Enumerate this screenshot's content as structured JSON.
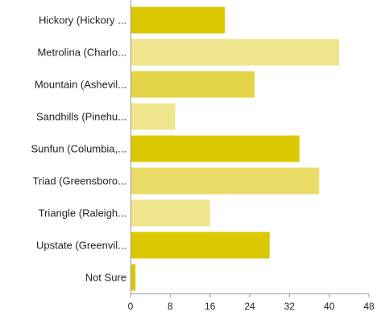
{
  "chart_data": {
    "type": "bar",
    "orientation": "horizontal",
    "title": "",
    "xlabel": "",
    "ylabel": "",
    "categories": [
      "Hickory (Hickory ...",
      "Metrolina (Charlo...",
      "Mountain (Ashevil...",
      "Sandhills (Pinehu...",
      "Sunfun (Columbia,...",
      "Triad (Greensboro...",
      "Triangle (Raleigh...",
      "Upstate (Greenvil...",
      "Not Sure"
    ],
    "values": [
      19,
      42,
      25,
      9,
      34,
      38,
      16,
      28,
      1
    ],
    "xlim": [
      0,
      48
    ],
    "xticks": [
      "0",
      "8",
      "16",
      "24",
      "32",
      "40",
      "48"
    ],
    "bar_colors": [
      "#dcc800",
      "#efe58c",
      "#e4d548",
      "#efe58c",
      "#dcc800",
      "#e9dc66",
      "#efe58c",
      "#dcc800",
      "#dcc800"
    ],
    "axis_color": "#999999",
    "grid": false,
    "legend": "none"
  }
}
